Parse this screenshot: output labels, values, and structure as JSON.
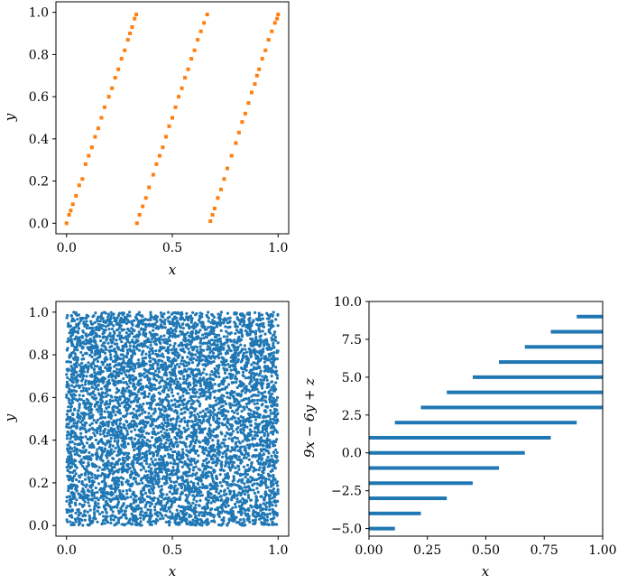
{
  "colors": {
    "orange": "#ff7f0e",
    "blue": "#1f77b4"
  },
  "chart_data": [
    {
      "panel": "top-left",
      "type": "scatter",
      "xlabel": "x",
      "ylabel": "y",
      "xlim": [
        -0.05,
        1.05
      ],
      "ylim": [
        -0.05,
        1.05
      ],
      "xticks": [
        0.0,
        0.5,
        1.0
      ],
      "xtick_labels": [
        "0.0",
        "0.5",
        "1.0"
      ],
      "yticks": [
        0.0,
        0.2,
        0.4,
        0.6,
        0.8,
        1.0
      ],
      "ytick_labels": [
        "0.0",
        "0.2",
        "0.4",
        "0.6",
        "0.8",
        "1.0"
      ],
      "grid": false,
      "series": [
        {
          "color": "#ff7f0e",
          "x": [
            0.0,
            0.012,
            0.02,
            0.03,
            0.045,
            0.06,
            0.075,
            0.09,
            0.105,
            0.12,
            0.135,
            0.15,
            0.165,
            0.18,
            0.2,
            0.215,
            0.23,
            0.245,
            0.26,
            0.275,
            0.29,
            0.3,
            0.31,
            0.322,
            0.33,
            0.333,
            0.345,
            0.36,
            0.375,
            0.39,
            0.41,
            0.425,
            0.44,
            0.455,
            0.47,
            0.485,
            0.5,
            0.515,
            0.53,
            0.545,
            0.56,
            0.575,
            0.59,
            0.605,
            0.62,
            0.635,
            0.65,
            0.665,
            0.68,
            0.69,
            0.7,
            0.715,
            0.73,
            0.745,
            0.76,
            0.78,
            0.8,
            0.815,
            0.83,
            0.845,
            0.86,
            0.875,
            0.89,
            0.9,
            0.91,
            0.925,
            0.94,
            0.955,
            0.97,
            0.985,
            0.995,
            1.0
          ],
          "y": [
            0.0,
            0.04,
            0.06,
            0.09,
            0.13,
            0.18,
            0.21,
            0.28,
            0.32,
            0.36,
            0.41,
            0.45,
            0.5,
            0.55,
            0.6,
            0.64,
            0.69,
            0.73,
            0.78,
            0.82,
            0.87,
            0.9,
            0.93,
            0.97,
            0.99,
            0.0,
            0.04,
            0.08,
            0.12,
            0.17,
            0.23,
            0.28,
            0.32,
            0.36,
            0.41,
            0.46,
            0.5,
            0.55,
            0.6,
            0.64,
            0.69,
            0.73,
            0.78,
            0.82,
            0.87,
            0.91,
            0.95,
            0.99,
            0.01,
            0.04,
            0.07,
            0.12,
            0.16,
            0.21,
            0.26,
            0.32,
            0.38,
            0.43,
            0.48,
            0.52,
            0.57,
            0.62,
            0.66,
            0.7,
            0.73,
            0.78,
            0.82,
            0.87,
            0.91,
            0.95,
            0.97,
            0.99
          ]
        }
      ]
    },
    {
      "panel": "bottom-left",
      "type": "scatter",
      "xlabel": "x",
      "ylabel": "y",
      "xlim": [
        -0.05,
        1.05
      ],
      "ylim": [
        -0.05,
        1.05
      ],
      "xticks": [
        0.0,
        0.5,
        1.0
      ],
      "xtick_labels": [
        "0.0",
        "0.5",
        "1.0"
      ],
      "yticks": [
        0.0,
        0.2,
        0.4,
        0.6,
        0.8,
        1.0
      ],
      "ytick_labels": [
        "0.0",
        "0.2",
        "0.4",
        "0.6",
        "0.8",
        "1.0"
      ],
      "grid": false,
      "series": [
        {
          "color": "#1f77b4",
          "distribution": "uniform over [0,1] x [0,1]",
          "approx_points": 6000
        }
      ]
    },
    {
      "panel": "bottom-right",
      "type": "scatter",
      "xlabel": "x",
      "ylabel": "9x − 6y + z",
      "xlim": [
        0.0,
        1.0
      ],
      "ylim": [
        -5.5,
        10.0
      ],
      "xticks": [
        0.0,
        0.25,
        0.5,
        0.75,
        1.0
      ],
      "xtick_labels": [
        "0.00",
        "0.25",
        "0.50",
        "0.75",
        "1.00"
      ],
      "yticks": [
        -5.0,
        -2.5,
        0.0,
        2.5,
        5.0,
        7.5,
        10.0
      ],
      "ytick_labels": [
        "−5.0",
        "−2.5",
        "0.0",
        "2.5",
        "5.0",
        "7.5",
        "10.0"
      ],
      "grid": false,
      "series": [
        {
          "color": "#1f77b4",
          "segments": [
            {
              "y": -5,
              "x_start": 0.0,
              "x_end": 0.111
            },
            {
              "y": -4,
              "x_start": 0.0,
              "x_end": 0.222
            },
            {
              "y": -3,
              "x_start": 0.0,
              "x_end": 0.333
            },
            {
              "y": -2,
              "x_start": 0.0,
              "x_end": 0.444
            },
            {
              "y": -1,
              "x_start": 0.0,
              "x_end": 0.556
            },
            {
              "y": 0,
              "x_start": 0.0,
              "x_end": 0.667
            },
            {
              "y": 1,
              "x_start": 0.0,
              "x_end": 0.778
            },
            {
              "y": 2,
              "x_start": 0.111,
              "x_end": 0.889
            },
            {
              "y": 3,
              "x_start": 0.222,
              "x_end": 1.0
            },
            {
              "y": 4,
              "x_start": 0.333,
              "x_end": 1.0
            },
            {
              "y": 5,
              "x_start": 0.444,
              "x_end": 1.0
            },
            {
              "y": 6,
              "x_start": 0.556,
              "x_end": 1.0
            },
            {
              "y": 7,
              "x_start": 0.667,
              "x_end": 1.0
            },
            {
              "y": 8,
              "x_start": 0.778,
              "x_end": 1.0
            },
            {
              "y": 9,
              "x_start": 0.889,
              "x_end": 1.0
            }
          ]
        }
      ]
    }
  ]
}
